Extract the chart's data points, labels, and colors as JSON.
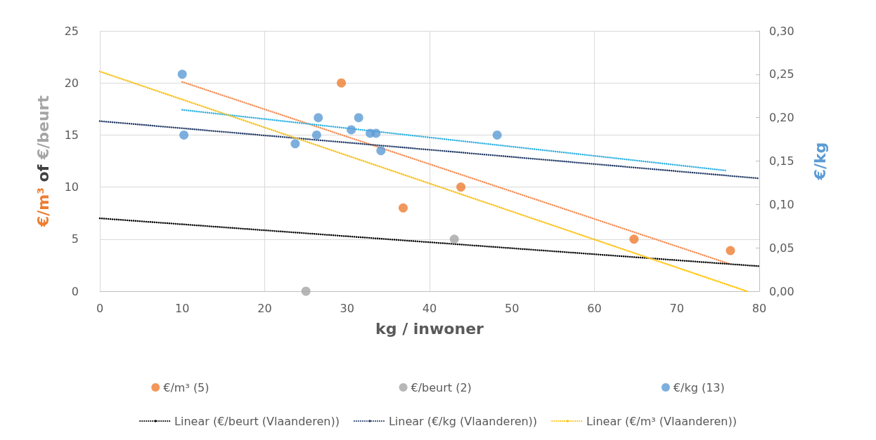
{
  "chart_data": {
    "type": "scatter",
    "xlabel": "kg / inwoner",
    "ylabel": "€/m³ of €/beurt",
    "y2label": "€/kg",
    "xlim": [
      0,
      80
    ],
    "xticks": [
      0,
      10,
      20,
      30,
      40,
      50,
      60,
      70,
      80
    ],
    "ylim": [
      0,
      25
    ],
    "yticks": [
      0,
      5,
      10,
      15,
      20,
      25
    ],
    "y2lim": [
      0,
      0.3
    ],
    "y2ticks": [
      {
        "value": 0,
        "label": "0,00"
      },
      {
        "value": 0.05,
        "label": "0,05"
      },
      {
        "value": 0.1,
        "label": "0,10"
      },
      {
        "value": 0.15,
        "label": "0,15"
      },
      {
        "value": 0.2,
        "label": "0,20"
      },
      {
        "value": 0.25,
        "label": "0,25"
      },
      {
        "value": 0.3,
        "label": "0,30"
      }
    ],
    "grid": true,
    "legend": "bottom",
    "marker": "circle",
    "series": [
      {
        "name": "€/m³ (5)",
        "color": "#ed7d31",
        "x": [
          29.3,
          36.8,
          43.8,
          64.8,
          76.5
        ],
        "values": [
          20,
          8,
          10,
          5,
          3.9
        ]
      },
      {
        "name": "€/beurt (2)",
        "color": "#a5a5a5",
        "x": [
          25,
          43
        ],
        "values": [
          0,
          5
        ]
      },
      {
        "name": "€/kg (13)",
        "color": "#5b9bd5",
        "axis": "y2",
        "x": [
          10,
          10.2,
          23.7,
          26.3,
          26.5,
          30.5,
          31.4,
          32.8,
          33.5,
          34.1,
          48.2
        ],
        "values": [
          0.25,
          0.18,
          0.17,
          0.18,
          0.2,
          0.186,
          0.2,
          0.182,
          0.182,
          0.162,
          0.18
        ]
      },
      {
        "type": "line",
        "color": "#f0905a",
        "line_style": "dotted",
        "marker": "none",
        "x": [
          10,
          76.5
        ],
        "values": [
          20.1,
          2.6
        ]
      },
      {
        "type": "line",
        "color": "#2fb0e0",
        "line_style": "dotted",
        "marker": "none",
        "axis": "y2",
        "x": [
          10,
          76
        ],
        "values": [
          0.209,
          0.139
        ]
      },
      {
        "name": "Linear (€/beurt (Vlaanderen))",
        "type": "line",
        "color": "#000000",
        "line_style": "dotted",
        "marker": "none",
        "x": [
          0,
          80
        ],
        "values": [
          7,
          2.4
        ]
      },
      {
        "name": "Linear (€/kg (Vlaanderen))",
        "type": "line",
        "color": "#1f3864",
        "line_style": "dotted",
        "marker": "none",
        "axis": "y2",
        "x": [
          0,
          80
        ],
        "values": [
          0.196,
          0.13
        ]
      },
      {
        "name": "Linear (€/m³ (Vlaanderen))",
        "type": "line",
        "color": "#ffc000",
        "line_style": "dotted",
        "marker": "none",
        "x": [
          0,
          78.5
        ],
        "values": [
          21.1,
          0
        ]
      }
    ]
  }
}
